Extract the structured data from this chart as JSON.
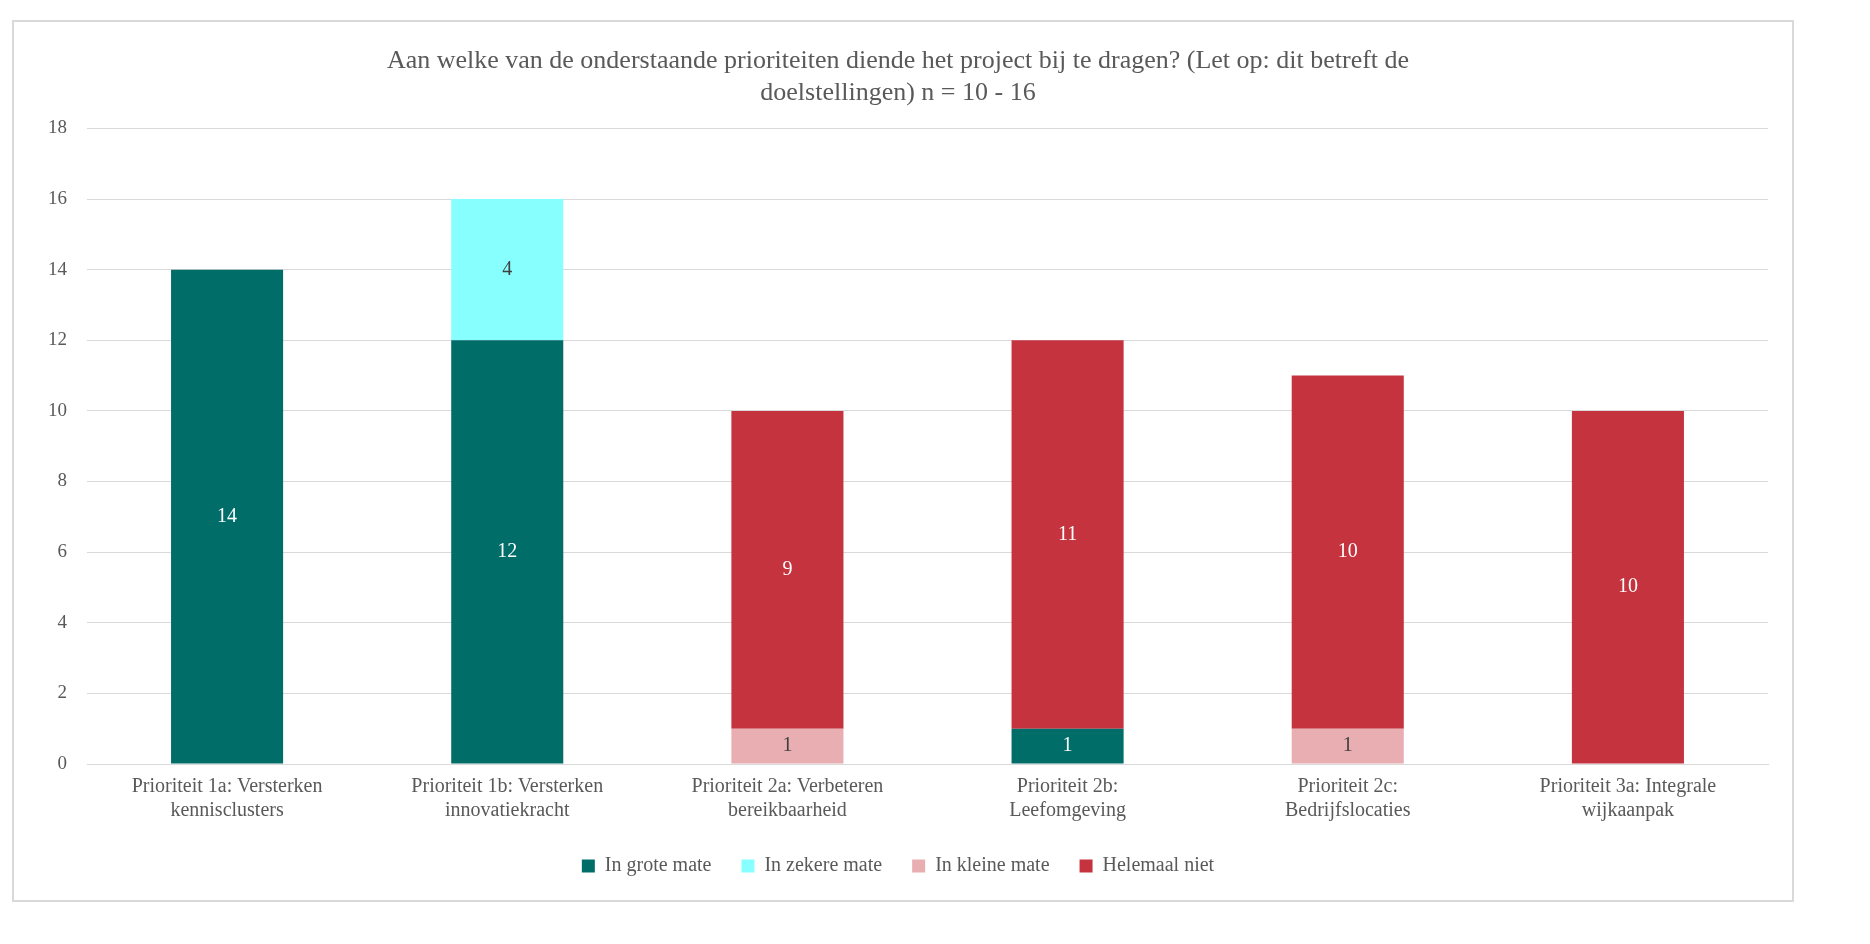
{
  "chart_data": {
    "type": "bar",
    "stacked": true,
    "title": "Aan welke van de onderstaande prioriteiten diende het project bij te dragen? (Let op: dit betreft de doelstellingen) n = 10 - 16",
    "categories": [
      "Prioriteit 1a: Versterken kennisclusters",
      "Prioriteit 1b: Versterken innovatiekracht",
      "Prioriteit 2a: Verbeteren bereikbaarheid",
      "Prioriteit 2b: Leefomgeving",
      "Prioriteit 2c: Bedrijfslocaties",
      "Prioriteit 3a: Integrale wijkaanpak"
    ],
    "series": [
      {
        "name": "In grote mate",
        "color": "#006d68",
        "values": [
          14,
          12,
          null,
          1,
          null,
          null
        ]
      },
      {
        "name": "In zekere mate",
        "color": "#88ffff",
        "values": [
          null,
          4,
          null,
          null,
          null,
          null
        ]
      },
      {
        "name": "In kleine mate",
        "color": "#e8aeb1",
        "values": [
          null,
          null,
          1,
          null,
          1,
          null
        ]
      },
      {
        "name": "Helemaal niet",
        "color": "#c4333e",
        "values": [
          null,
          null,
          9,
          11,
          10,
          10
        ]
      }
    ],
    "ylim": [
      0,
      18
    ],
    "yticks": [
      0,
      2,
      4,
      6,
      8,
      10,
      12,
      14,
      16,
      18
    ],
    "grid": "y",
    "legend": "bottom",
    "data_labels": true
  }
}
